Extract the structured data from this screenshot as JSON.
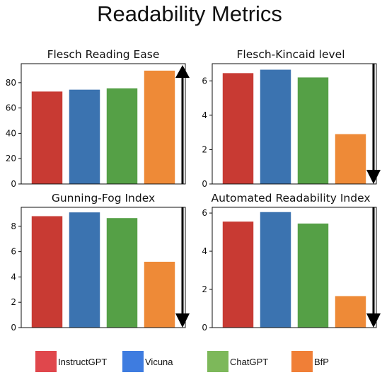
{
  "title": "Readability Metrics",
  "colors": {
    "InstructGPT": "#c83a33",
    "Vicuna": "#3b73b0",
    "ChatGPT": "#55a046",
    "BfP": "#ee8a37"
  },
  "legend": {
    "placement": "bottom",
    "entries": [
      {
        "label": "InstructGPT",
        "color": "#e0474c"
      },
      {
        "label": "Vicuna",
        "color": "#3e7ce0"
      },
      {
        "label": "ChatGPT",
        "color": "#7db85a"
      },
      {
        "label": "BfP",
        "color": "#f07f37"
      }
    ]
  },
  "chart_data": [
    {
      "type": "bar",
      "title": "Flesch Reading Ease",
      "categories": [
        "InstructGPT",
        "Vicuna",
        "ChatGPT",
        "BfP"
      ],
      "values": [
        73,
        74.5,
        75.5,
        89.5
      ],
      "ylim": [
        0,
        95
      ],
      "yticks": [
        0,
        20,
        40,
        60,
        80
      ],
      "arrow": "up",
      "grid": false
    },
    {
      "type": "bar",
      "title": "Flesch-Kincaid level",
      "categories": [
        "InstructGPT",
        "Vicuna",
        "ChatGPT",
        "BfP"
      ],
      "values": [
        6.45,
        6.65,
        6.2,
        2.9
      ],
      "ylim": [
        0,
        7
      ],
      "yticks": [
        0,
        2,
        4,
        6
      ],
      "arrow": "down",
      "grid": false
    },
    {
      "type": "bar",
      "title": "Gunning-Fog Index",
      "categories": [
        "InstructGPT",
        "Vicuna",
        "ChatGPT",
        "BfP"
      ],
      "values": [
        8.8,
        9.1,
        8.65,
        5.2
      ],
      "ylim": [
        0,
        9.5
      ],
      "yticks": [
        0,
        2,
        4,
        6,
        8
      ],
      "arrow": "down",
      "grid": false
    },
    {
      "type": "bar",
      "title": "Automated Readability Index",
      "categories": [
        "InstructGPT",
        "Vicuna",
        "ChatGPT",
        "BfP"
      ],
      "values": [
        5.55,
        6.05,
        5.45,
        1.65
      ],
      "ylim": [
        0,
        6.3
      ],
      "yticks": [
        0,
        2,
        4,
        6
      ],
      "arrow": "down",
      "grid": false
    }
  ]
}
